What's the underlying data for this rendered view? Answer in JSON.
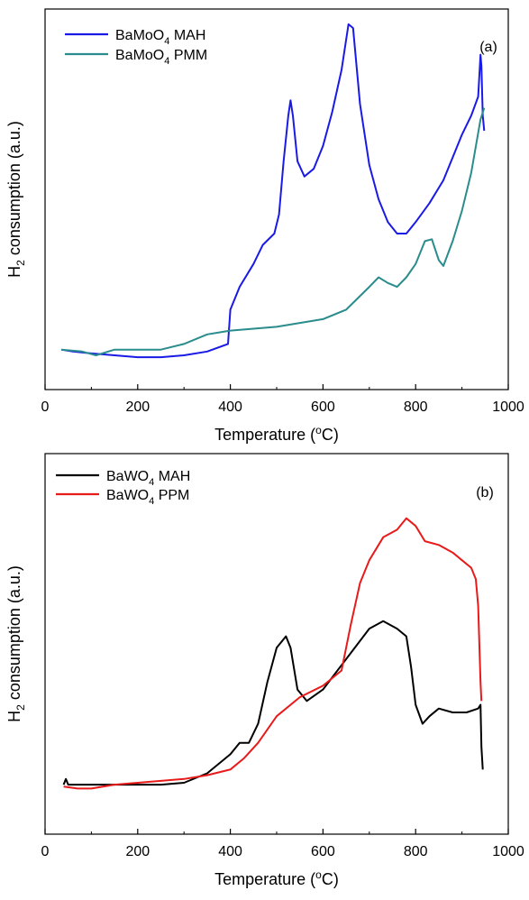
{
  "chart_data": [
    {
      "type": "line",
      "panel_label": "(a)",
      "xlabel_main": "Temperature (",
      "xlabel_sup": "o",
      "xlabel_end": "C)",
      "ylabel_main": "H",
      "ylabel_sub": "2",
      "ylabel_end": " consumption (a.u.)",
      "xlim": [
        0,
        1000
      ],
      "xticks": [
        0,
        200,
        400,
        600,
        800,
        1000
      ],
      "ylim": [
        0,
        1
      ],
      "y_ticks_shown": false,
      "grid": false,
      "legend_position": "top-left",
      "series": [
        {
          "name_main": "BaMoO",
          "name_sub": "4",
          "name_end": " MAH",
          "color": "#1a1ae6",
          "x": [
            35,
            60,
            100,
            150,
            200,
            250,
            300,
            350,
            395,
            400,
            420,
            450,
            470,
            495,
            505,
            515,
            525,
            530,
            535,
            545,
            560,
            580,
            600,
            620,
            640,
            655,
            665,
            680,
            700,
            720,
            740,
            760,
            780,
            800,
            830,
            860,
            880,
            900,
            920,
            935,
            940,
            942,
            945,
            948
          ],
          "y": [
            0.105,
            0.1,
            0.095,
            0.09,
            0.085,
            0.085,
            0.09,
            0.1,
            0.12,
            0.21,
            0.27,
            0.33,
            0.38,
            0.41,
            0.46,
            0.6,
            0.72,
            0.76,
            0.72,
            0.6,
            0.56,
            0.58,
            0.64,
            0.73,
            0.84,
            0.96,
            0.95,
            0.75,
            0.59,
            0.5,
            0.44,
            0.41,
            0.41,
            0.44,
            0.49,
            0.55,
            0.61,
            0.67,
            0.72,
            0.77,
            0.88,
            0.85,
            0.72,
            0.68
          ]
        },
        {
          "name_main": "BaMoO",
          "name_sub": "4",
          "name_end": " PMM",
          "color": "#2a8c8c",
          "x": [
            35,
            80,
            110,
            150,
            200,
            250,
            300,
            350,
            400,
            450,
            500,
            550,
            600,
            650,
            700,
            720,
            740,
            760,
            780,
            800,
            820,
            835,
            850,
            860,
            880,
            900,
            920,
            940,
            948
          ],
          "y": [
            0.105,
            0.1,
            0.09,
            0.105,
            0.105,
            0.105,
            0.12,
            0.145,
            0.155,
            0.16,
            0.165,
            0.175,
            0.185,
            0.21,
            0.27,
            0.295,
            0.28,
            0.27,
            0.295,
            0.33,
            0.39,
            0.395,
            0.34,
            0.325,
            0.39,
            0.47,
            0.57,
            0.71,
            0.74
          ]
        }
      ]
    },
    {
      "type": "line",
      "panel_label": "(b)",
      "xlabel_main": "Temperature (",
      "xlabel_sup": "o",
      "xlabel_end": "C)",
      "ylabel_main": "H",
      "ylabel_sub": "2",
      "ylabel_end": " consumption (a.u.)",
      "xlim": [
        0,
        1000
      ],
      "xticks": [
        0,
        200,
        400,
        600,
        800,
        1000
      ],
      "ylim": [
        0,
        1
      ],
      "y_ticks_shown": false,
      "grid": false,
      "legend_position": "top-left",
      "series": [
        {
          "name_main": "BaWO",
          "name_sub": "4",
          "name_end": " MAH",
          "color": "#000000",
          "x": [
            40,
            45,
            50,
            70,
            100,
            150,
            200,
            250,
            300,
            350,
            400,
            420,
            440,
            460,
            480,
            500,
            520,
            530,
            545,
            565,
            600,
            650,
            700,
            730,
            760,
            780,
            790,
            800,
            815,
            830,
            850,
            880,
            910,
            935,
            940,
            942,
            945
          ],
          "y": [
            0.13,
            0.145,
            0.13,
            0.13,
            0.13,
            0.13,
            0.13,
            0.13,
            0.135,
            0.16,
            0.21,
            0.24,
            0.24,
            0.29,
            0.4,
            0.49,
            0.52,
            0.49,
            0.38,
            0.35,
            0.38,
            0.46,
            0.54,
            0.56,
            0.54,
            0.52,
            0.44,
            0.34,
            0.29,
            0.31,
            0.33,
            0.32,
            0.32,
            0.33,
            0.34,
            0.23,
            0.17
          ]
        },
        {
          "name_main": "BaWO",
          "name_sub": "4",
          "name_end": " PPM",
          "color": "#e81a1a",
          "x": [
            40,
            70,
            100,
            150,
            200,
            250,
            300,
            350,
            400,
            430,
            460,
            500,
            550,
            600,
            640,
            660,
            680,
            700,
            730,
            760,
            780,
            800,
            820,
            850,
            880,
            900,
            920,
            930,
            935,
            940,
            942
          ],
          "y": [
            0.125,
            0.12,
            0.12,
            0.13,
            0.135,
            0.14,
            0.145,
            0.155,
            0.17,
            0.2,
            0.24,
            0.31,
            0.36,
            0.39,
            0.43,
            0.55,
            0.66,
            0.72,
            0.78,
            0.8,
            0.83,
            0.81,
            0.77,
            0.76,
            0.74,
            0.72,
            0.7,
            0.67,
            0.6,
            0.4,
            0.35
          ]
        }
      ]
    }
  ]
}
